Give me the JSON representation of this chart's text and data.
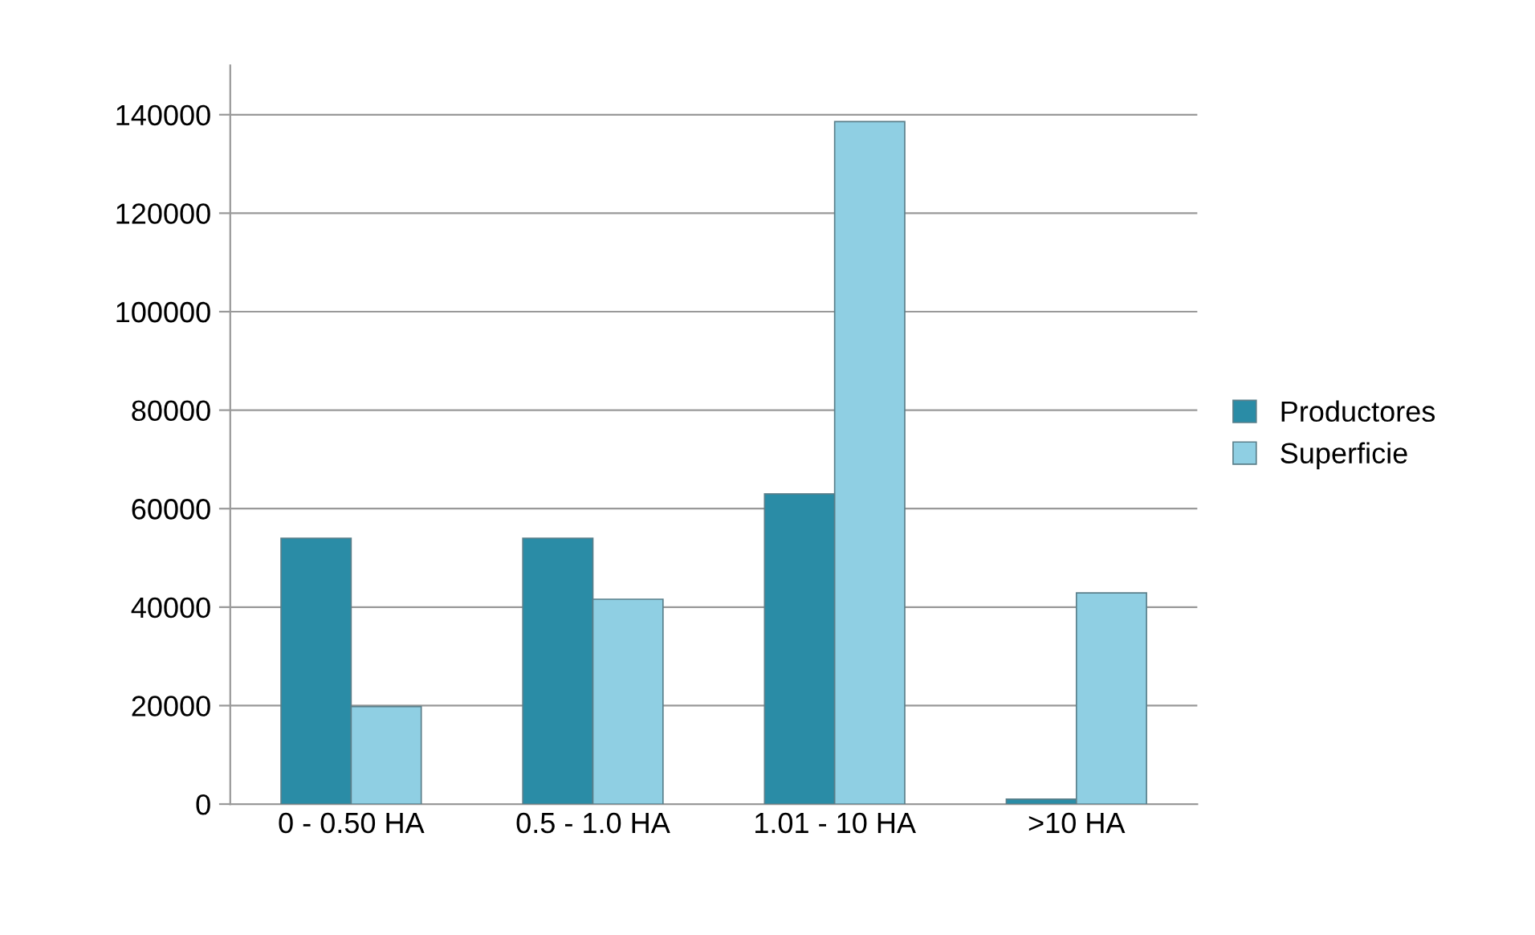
{
  "chart_data": {
    "type": "bar",
    "categories": [
      "0 - 0.50 HA",
      "0.5 - 1.0 HA",
      "1.01 - 10 HA",
      ">10 HA"
    ],
    "series": [
      {
        "name": "Productores",
        "color": "#2a8ca6",
        "values": [
          54000,
          54000,
          63000,
          1000
        ]
      },
      {
        "name": "Superficie",
        "color": "#8fcfe3",
        "values": [
          19800,
          41600,
          138600,
          42900
        ]
      }
    ],
    "ylim": [
      0,
      150000
    ],
    "yticks": [
      0,
      20000,
      40000,
      60000,
      80000,
      100000,
      120000,
      140000
    ],
    "grid": "y",
    "legend": "right"
  }
}
